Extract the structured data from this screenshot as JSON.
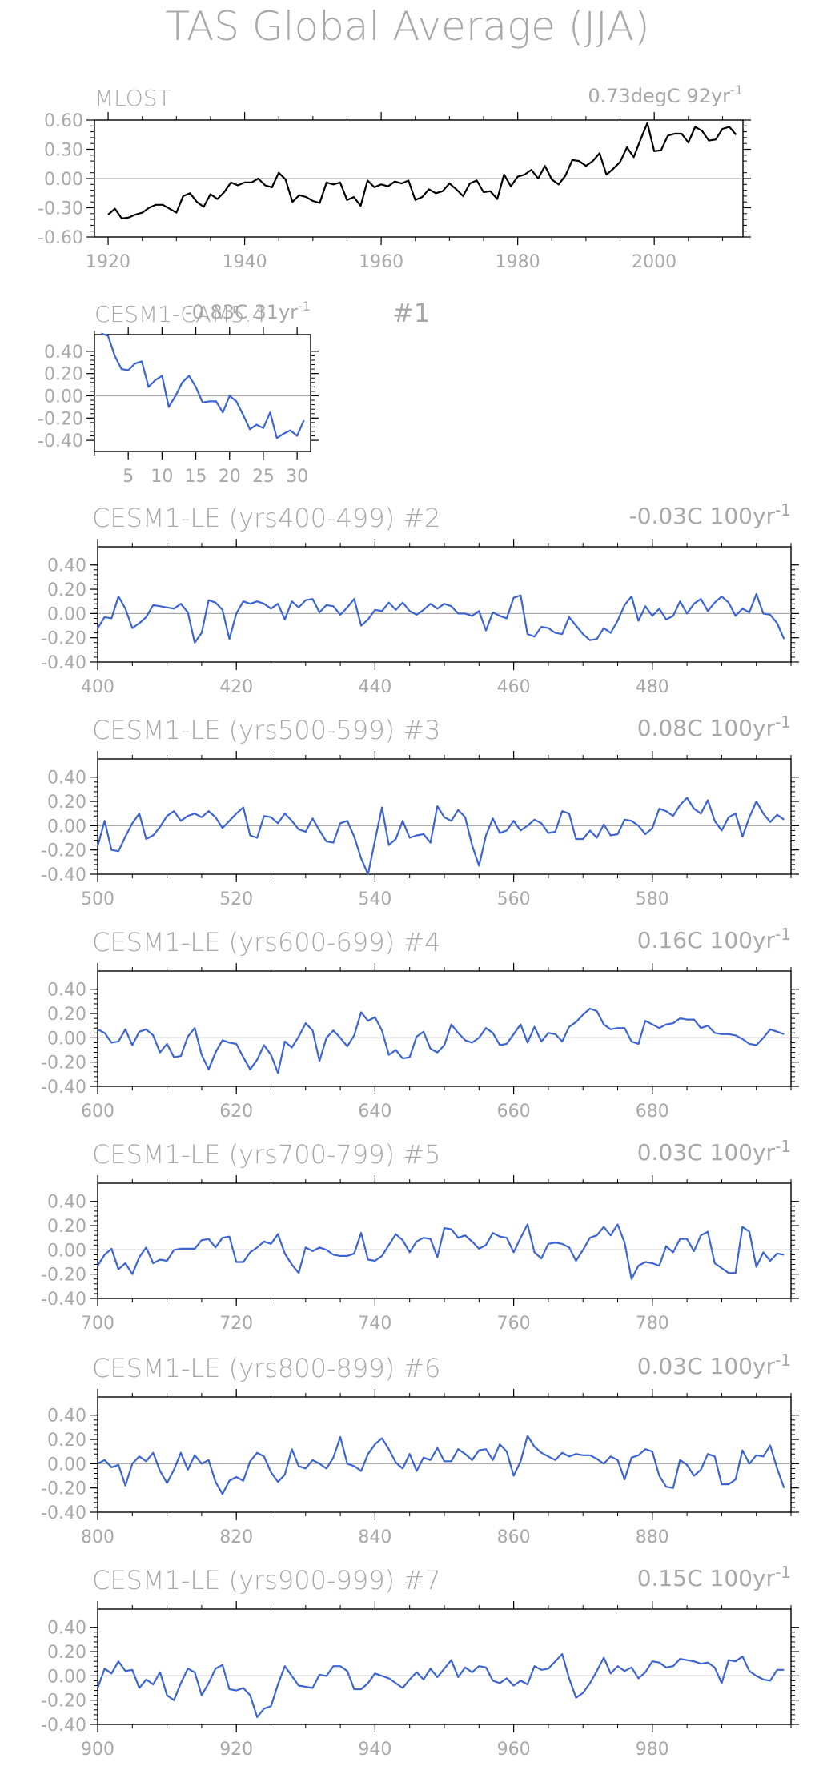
{
  "page": {
    "title": "TAS Global Average (JJA)"
  },
  "chart_data": [
    {
      "type": "line",
      "title": "MLOST",
      "trend_text": "0.73degC 92yr",
      "trend_exp": "-1",
      "series_color": "#000000",
      "xlim": [
        1918,
        2013
      ],
      "ylim": [
        -0.6,
        0.6
      ],
      "xticks": [
        1920,
        1940,
        1960,
        1980,
        2000
      ],
      "yticks": [
        "0.60",
        "0.30",
        "0.00",
        "-0.30",
        "-0.60"
      ],
      "ytick_values": [
        0.6,
        0.3,
        0,
        -0.3,
        -0.6
      ],
      "x_start": 1920,
      "y": [
        -0.37,
        -0.31,
        -0.41,
        -0.4,
        -0.37,
        -0.35,
        -0.3,
        -0.27,
        -0.27,
        -0.31,
        -0.35,
        -0.18,
        -0.15,
        -0.24,
        -0.29,
        -0.16,
        -0.21,
        -0.14,
        -0.04,
        -0.07,
        -0.04,
        -0.04,
        0.0,
        -0.07,
        -0.09,
        0.06,
        -0.01,
        -0.24,
        -0.17,
        -0.19,
        -0.23,
        -0.25,
        -0.04,
        -0.06,
        -0.04,
        -0.22,
        -0.19,
        -0.28,
        -0.02,
        -0.09,
        -0.06,
        -0.08,
        -0.03,
        -0.05,
        -0.02,
        -0.22,
        -0.19,
        -0.11,
        -0.15,
        -0.13,
        -0.05,
        -0.11,
        -0.18,
        -0.05,
        -0.02,
        -0.14,
        -0.13,
        -0.21,
        0.04,
        -0.08,
        0.02,
        0.04,
        0.09,
        0.0,
        0.13,
        -0.01,
        -0.06,
        0.03,
        0.19,
        0.18,
        0.13,
        0.18,
        0.26,
        0.04,
        0.1,
        0.17,
        0.32,
        0.22,
        0.4,
        0.57,
        0.28,
        0.29,
        0.44,
        0.46,
        0.46,
        0.37,
        0.53,
        0.49,
        0.39,
        0.4,
        0.51,
        0.53,
        0.45
      ]
    },
    {
      "type": "line",
      "title": "CESM1-CAM5.4",
      "run_label": "#1",
      "trend_text": "-0.83C 31yr",
      "trend_exp": "-1",
      "series_color": "#3c64d2",
      "xlim": [
        0,
        32
      ],
      "ylim": [
        -0.5,
        0.55
      ],
      "xticks": [
        5,
        10,
        15,
        20,
        25,
        30
      ],
      "yticks": [
        "0.40",
        "0.20",
        "0.00",
        "-0.20",
        "-0.40"
      ],
      "ytick_values": [
        0.4,
        0.2,
        0,
        -0.2,
        -0.4
      ],
      "x_start": 1,
      "y": [
        0.56,
        0.54,
        0.36,
        0.24,
        0.23,
        0.29,
        0.31,
        0.08,
        0.14,
        0.18,
        -0.1,
        0.0,
        0.12,
        0.18,
        0.08,
        -0.06,
        -0.05,
        -0.05,
        -0.15,
        0.0,
        -0.05,
        -0.17,
        -0.3,
        -0.26,
        -0.29,
        -0.15,
        -0.38,
        -0.34,
        -0.31,
        -0.36,
        -0.22
      ]
    },
    {
      "type": "line",
      "title": "CESM1-LE (yrs400-499)",
      "run_label": "#2",
      "trend_text": "-0.03C 100yr",
      "trend_exp": "-1",
      "series_color": "#3c64d2",
      "xlim": [
        400,
        500
      ],
      "ylim": [
        -0.4,
        0.55
      ],
      "xticks": [
        400,
        420,
        440,
        460,
        480
      ],
      "yticks": [
        "0.40",
        "0.20",
        "0.00",
        "-0.20",
        "-0.40"
      ],
      "ytick_values": [
        0.4,
        0.2,
        0,
        -0.2,
        -0.4
      ],
      "x_start": 400,
      "y": [
        -0.12,
        -0.03,
        -0.04,
        0.14,
        0.04,
        -0.12,
        -0.08,
        -0.03,
        0.07,
        0.06,
        0.05,
        0.04,
        0.08,
        0.01,
        -0.24,
        -0.16,
        0.11,
        0.09,
        0.03,
        -0.21,
        0.0,
        0.1,
        0.08,
        0.1,
        0.08,
        0.04,
        0.08,
        -0.05,
        0.1,
        0.05,
        0.11,
        0.12,
        0.01,
        0.07,
        0.06,
        -0.01,
        0.05,
        0.12,
        -0.1,
        -0.05,
        0.03,
        0.02,
        0.09,
        0.03,
        0.09,
        0.02,
        -0.01,
        0.03,
        0.08,
        0.04,
        0.08,
        0.06,
        0.0,
        0.0,
        -0.02,
        0.02,
        -0.14,
        0.01,
        -0.02,
        -0.04,
        0.13,
        0.15,
        -0.17,
        -0.19,
        -0.11,
        -0.12,
        -0.16,
        -0.17,
        -0.03,
        -0.1,
        -0.17,
        -0.22,
        -0.21,
        -0.12,
        -0.16,
        -0.06,
        0.07,
        0.14,
        -0.06,
        0.06,
        -0.02,
        0.04,
        -0.05,
        -0.02,
        0.1,
        0.0,
        0.08,
        0.12,
        0.02,
        0.09,
        0.14,
        0.09,
        -0.02,
        0.04,
        0.01,
        0.16,
        0.0,
        -0.01,
        -0.08,
        -0.21
      ]
    },
    {
      "type": "line",
      "title": "CESM1-LE (yrs500-599)",
      "run_label": "#3",
      "trend_text": "0.08C 100yr",
      "trend_exp": "-1",
      "series_color": "#3c64d2",
      "xlim": [
        500,
        600
      ],
      "ylim": [
        -0.4,
        0.55
      ],
      "xticks": [
        500,
        520,
        540,
        560,
        580
      ],
      "yticks": [
        "0.40",
        "0.20",
        "0.00",
        "-0.20",
        "-0.40"
      ],
      "ytick_values": [
        0.4,
        0.2,
        0,
        -0.2,
        -0.4
      ],
      "x_start": 500,
      "y": [
        -0.17,
        0.04,
        -0.2,
        -0.21,
        -0.09,
        0.02,
        0.1,
        -0.11,
        -0.08,
        -0.01,
        0.08,
        0.12,
        0.04,
        0.08,
        0.1,
        0.07,
        0.12,
        0.07,
        -0.02,
        0.04,
        0.1,
        0.15,
        -0.08,
        -0.1,
        0.08,
        0.07,
        0.02,
        0.1,
        0.04,
        -0.03,
        -0.05,
        0.06,
        -0.04,
        -0.13,
        -0.14,
        0.02,
        0.04,
        -0.09,
        -0.27,
        -0.4,
        -0.12,
        0.15,
        -0.16,
        -0.11,
        0.04,
        -0.1,
        -0.08,
        -0.07,
        -0.14,
        0.16,
        0.07,
        0.04,
        0.13,
        0.07,
        -0.16,
        -0.33,
        -0.08,
        0.06,
        -0.06,
        -0.04,
        0.04,
        -0.04,
        0.0,
        0.05,
        0.02,
        -0.06,
        -0.05,
        0.12,
        0.1,
        -0.11,
        -0.11,
        -0.04,
        -0.1,
        0.01,
        -0.08,
        -0.07,
        0.05,
        0.04,
        0.0,
        -0.07,
        -0.02,
        0.14,
        0.12,
        0.08,
        0.17,
        0.23,
        0.14,
        0.1,
        0.21,
        0.04,
        -0.04,
        0.07,
        0.1,
        -0.09,
        0.07,
        0.2,
        0.1,
        0.03,
        0.09,
        0.05
      ]
    },
    {
      "type": "line",
      "title": "CESM1-LE (yrs600-699)",
      "run_label": "#4",
      "trend_text": "0.16C 100yr",
      "trend_exp": "-1",
      "series_color": "#3c64d2",
      "xlim": [
        600,
        700
      ],
      "ylim": [
        -0.4,
        0.55
      ],
      "xticks": [
        600,
        620,
        640,
        660,
        680
      ],
      "yticks": [
        "0.40",
        "0.20",
        "0.00",
        "-0.20",
        "-0.40"
      ],
      "ytick_values": [
        0.4,
        0.2,
        0,
        -0.2,
        -0.4
      ],
      "x_start": 600,
      "y": [
        0.07,
        0.04,
        -0.04,
        -0.03,
        0.07,
        -0.06,
        0.05,
        0.07,
        0.02,
        -0.12,
        -0.05,
        -0.16,
        -0.15,
        0.01,
        0.08,
        -0.14,
        -0.26,
        -0.12,
        -0.02,
        -0.04,
        -0.05,
        -0.16,
        -0.26,
        -0.18,
        -0.06,
        -0.14,
        -0.29,
        -0.03,
        -0.08,
        0.01,
        0.12,
        0.06,
        -0.19,
        0.0,
        0.06,
        0.0,
        -0.07,
        0.02,
        0.21,
        0.14,
        0.17,
        0.06,
        -0.14,
        -0.1,
        -0.17,
        -0.16,
        0.01,
        0.05,
        -0.09,
        -0.12,
        -0.06,
        0.11,
        0.04,
        -0.02,
        -0.04,
        0.0,
        0.08,
        0.04,
        -0.06,
        -0.05,
        0.03,
        0.11,
        -0.04,
        0.09,
        -0.03,
        0.04,
        0.03,
        -0.03,
        0.09,
        0.13,
        0.19,
        0.24,
        0.22,
        0.11,
        0.07,
        0.08,
        0.08,
        -0.03,
        -0.05,
        0.14,
        0.11,
        0.08,
        0.11,
        0.12,
        0.16,
        0.15,
        0.15,
        0.08,
        0.1,
        0.04,
        0.03,
        0.03,
        0.02,
        -0.01,
        -0.05,
        -0.06,
        0.0,
        0.07,
        0.05,
        0.03
      ]
    },
    {
      "type": "line",
      "title": "CESM1-LE (yrs700-799)",
      "run_label": "#5",
      "trend_text": "0.03C 100yr",
      "trend_exp": "-1",
      "series_color": "#3c64d2",
      "xlim": [
        700,
        800
      ],
      "ylim": [
        -0.4,
        0.55
      ],
      "xticks": [
        700,
        720,
        740,
        760,
        780
      ],
      "yticks": [
        "0.40",
        "0.20",
        "0.00",
        "-0.20",
        "-0.40"
      ],
      "ytick_values": [
        0.4,
        0.2,
        0,
        -0.2,
        -0.4
      ],
      "x_start": 700,
      "y": [
        -0.13,
        -0.04,
        0.01,
        -0.16,
        -0.11,
        -0.2,
        -0.06,
        0.02,
        -0.11,
        -0.08,
        -0.09,
        0.0,
        0.01,
        0.01,
        0.01,
        0.08,
        0.09,
        0.02,
        0.1,
        0.11,
        -0.1,
        -0.1,
        -0.02,
        0.02,
        0.07,
        0.05,
        0.13,
        -0.03,
        -0.12,
        -0.19,
        0.02,
        -0.01,
        0.02,
        0.0,
        -0.04,
        -0.05,
        -0.05,
        -0.03,
        0.14,
        -0.08,
        -0.09,
        -0.05,
        0.04,
        0.13,
        0.08,
        -0.02,
        0.07,
        0.1,
        0.09,
        -0.06,
        0.18,
        0.17,
        0.1,
        0.12,
        0.07,
        0.01,
        0.04,
        0.14,
        0.11,
        0.1,
        -0.02,
        0.1,
        0.21,
        -0.02,
        -0.07,
        0.05,
        0.06,
        0.05,
        0.02,
        -0.09,
        0.0,
        0.1,
        0.12,
        0.19,
        0.12,
        0.21,
        0.06,
        -0.24,
        -0.13,
        -0.1,
        -0.11,
        -0.13,
        0.03,
        -0.02,
        0.09,
        0.09,
        -0.01,
        0.12,
        0.15,
        -0.11,
        -0.15,
        -0.19,
        -0.19,
        0.19,
        0.15,
        -0.14,
        -0.02,
        -0.09,
        -0.03,
        -0.04
      ]
    },
    {
      "type": "line",
      "title": "CESM1-LE (yrs800-899)",
      "run_label": "#6",
      "trend_text": "0.03C 100yr",
      "trend_exp": "-1",
      "series_color": "#3c64d2",
      "xlim": [
        800,
        900
      ],
      "ylim": [
        -0.4,
        0.55
      ],
      "xticks": [
        800,
        820,
        840,
        860,
        880
      ],
      "yticks": [
        "0.40",
        "0.20",
        "0.00",
        "-0.20",
        "-0.40"
      ],
      "ytick_values": [
        0.4,
        0.2,
        0,
        -0.2,
        -0.4
      ],
      "x_start": 800,
      "y": [
        0.0,
        0.03,
        -0.03,
        -0.01,
        -0.18,
        0.0,
        0.06,
        0.02,
        0.09,
        -0.06,
        -0.16,
        -0.05,
        0.09,
        -0.05,
        0.07,
        0.0,
        0.03,
        -0.15,
        -0.25,
        -0.14,
        -0.11,
        -0.14,
        0.02,
        0.09,
        0.06,
        -0.07,
        -0.15,
        -0.09,
        0.12,
        -0.02,
        -0.04,
        0.03,
        0.0,
        -0.04,
        0.05,
        0.22,
        0.0,
        -0.02,
        -0.06,
        0.08,
        0.16,
        0.21,
        0.12,
        0.01,
        -0.04,
        0.08,
        -0.06,
        0.05,
        0.03,
        0.13,
        0.02,
        0.02,
        0.12,
        0.08,
        0.03,
        0.11,
        0.12,
        0.03,
        0.16,
        0.1,
        -0.1,
        0.02,
        0.23,
        0.14,
        0.09,
        0.06,
        0.03,
        0.09,
        0.06,
        0.08,
        0.07,
        0.07,
        0.04,
        0.0,
        0.06,
        0.03,
        -0.13,
        0.05,
        0.07,
        0.12,
        0.1,
        -0.1,
        -0.19,
        -0.2,
        0.03,
        -0.01,
        -0.1,
        -0.05,
        0.08,
        0.06,
        -0.17,
        -0.17,
        -0.13,
        0.11,
        0.0,
        0.07,
        0.06,
        0.15,
        -0.04,
        -0.2
      ]
    },
    {
      "type": "line",
      "title": "CESM1-LE (yrs900-999)",
      "run_label": "#7",
      "trend_text": "0.15C 100yr",
      "trend_exp": "-1",
      "series_color": "#3c64d2",
      "xlim": [
        900,
        1000
      ],
      "ylim": [
        -0.4,
        0.55
      ],
      "xticks": [
        900,
        920,
        940,
        960,
        980
      ],
      "yticks": [
        "0.40",
        "0.20",
        "0.00",
        "-0.20",
        "-0.40"
      ],
      "ytick_values": [
        0.4,
        0.2,
        0,
        -0.2,
        -0.4
      ],
      "x_start": 900,
      "y": [
        -0.1,
        0.06,
        0.02,
        0.12,
        0.04,
        0.05,
        -0.1,
        -0.03,
        -0.07,
        0.03,
        -0.16,
        -0.2,
        -0.06,
        0.06,
        0.03,
        -0.16,
        -0.06,
        0.06,
        0.09,
        -0.11,
        -0.12,
        -0.1,
        -0.16,
        -0.34,
        -0.27,
        -0.25,
        -0.07,
        0.08,
        0.0,
        -0.08,
        -0.09,
        -0.1,
        0.01,
        0.0,
        0.08,
        0.08,
        0.04,
        -0.11,
        -0.11,
        -0.06,
        0.02,
        0.0,
        -0.02,
        -0.06,
        -0.1,
        -0.03,
        0.03,
        -0.03,
        0.06,
        -0.01,
        0.06,
        0.13,
        -0.01,
        0.07,
        0.03,
        0.08,
        0.07,
        -0.04,
        -0.06,
        -0.02,
        -0.08,
        -0.04,
        -0.07,
        0.08,
        0.05,
        0.06,
        0.12,
        0.18,
        -0.02,
        -0.18,
        -0.14,
        -0.06,
        0.04,
        0.15,
        0.02,
        0.08,
        0.04,
        0.07,
        -0.02,
        0.03,
        0.12,
        0.11,
        0.07,
        0.08,
        0.14,
        0.13,
        0.12,
        0.1,
        0.11,
        0.07,
        -0.06,
        0.13,
        0.12,
        0.16,
        0.04,
        0.0,
        -0.03,
        -0.04,
        0.05,
        0.05
      ]
    }
  ]
}
